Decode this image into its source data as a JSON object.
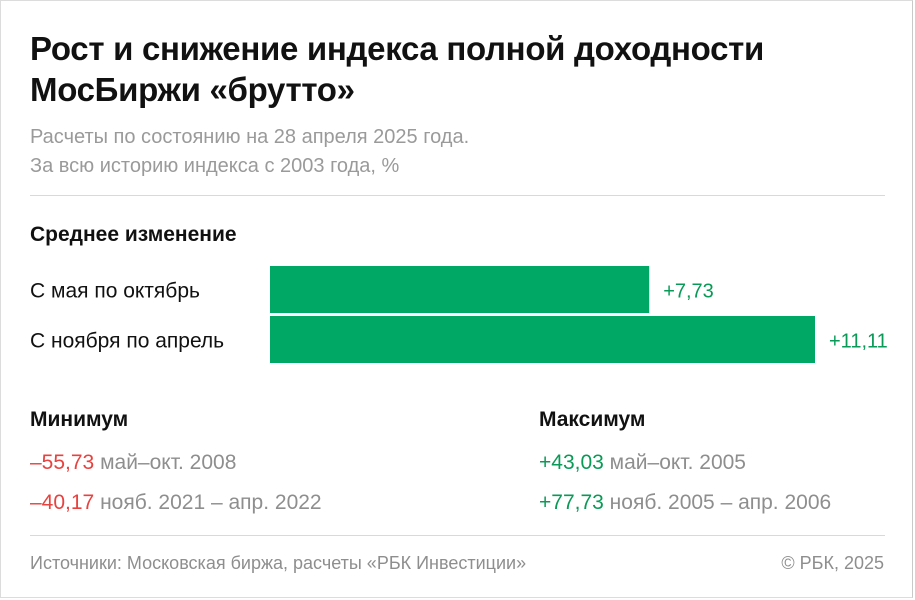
{
  "title": "Рост и снижение индекса полной доходности МосБиржи «брутто»",
  "subtitle_line1": "Расчеты по состоянию на 28 апреля 2025 года.",
  "subtitle_line2": "За всю историю индекса с 2003 года, %",
  "chart_data": {
    "type": "bar",
    "orientation": "horizontal",
    "section_label": "Среднее изменение",
    "categories": [
      "С мая по октябрь",
      "С ноября по апрель"
    ],
    "values": [
      7.73,
      11.11
    ],
    "value_labels": [
      "+7,73",
      "+11,11"
    ],
    "color": "#00a865"
  },
  "minimum": {
    "label": "Минимум",
    "rows": [
      {
        "value": "–55,73",
        "period": "май–окт. 2008"
      },
      {
        "value": "–40,17",
        "period": "нояб. 2021 – апр. 2022"
      }
    ]
  },
  "maximum": {
    "label": "Максимум",
    "rows": [
      {
        "value": "+43,03",
        "period": "май–окт. 2005"
      },
      {
        "value": "+77,73",
        "period": "нояб. 2005 – апр. 2006"
      }
    ]
  },
  "footer": {
    "source": "Источники: Московская биржа, расчеты «РБК Инвестиции»",
    "copyright": "© РБК, 2025"
  },
  "colors": {
    "bar": "#00a865",
    "positive": "#0a9a57",
    "negative": "#e8423f"
  }
}
